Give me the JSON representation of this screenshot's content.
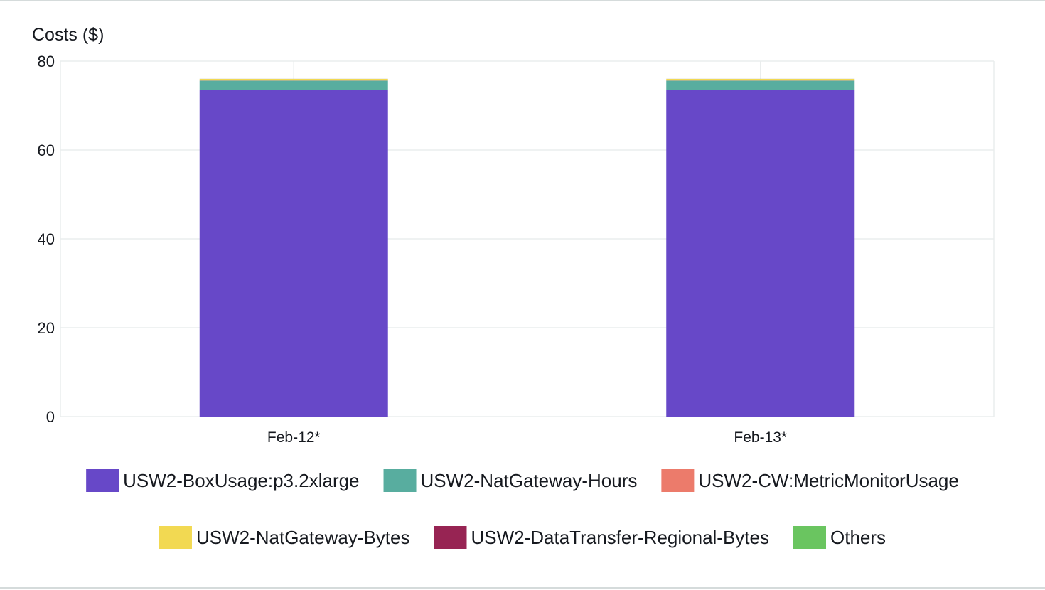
{
  "chart_data": {
    "type": "bar",
    "stacked": true,
    "ylabel": "Costs ($)",
    "xlabel": "",
    "ylim": [
      0,
      80
    ],
    "yticks": [
      0,
      20,
      40,
      60,
      80
    ],
    "grid": true,
    "legend_position": "bottom",
    "categories": [
      "Feb-12*",
      "Feb-13*"
    ],
    "series": [
      {
        "name": "USW2-BoxUsage:p3.2xlarge",
        "color": "#6748c8",
        "values": [
          73.44,
          73.44
        ]
      },
      {
        "name": "USW2-NatGateway-Hours",
        "color": "#58ad9f",
        "values": [
          2.16,
          2.16
        ]
      },
      {
        "name": "USW2-CW:MetricMonitorUsage",
        "color": "#ec7b6b",
        "values": [
          0.05,
          0.05
        ]
      },
      {
        "name": "USW2-NatGateway-Bytes",
        "color": "#f2d952",
        "values": [
          0.35,
          0.35
        ]
      },
      {
        "name": "USW2-DataTransfer-Regional-Bytes",
        "color": "#972453",
        "values": [
          0.01,
          0.01
        ]
      },
      {
        "name": "Others",
        "color": "#6ac560",
        "values": [
          0.01,
          0.01
        ]
      }
    ]
  }
}
